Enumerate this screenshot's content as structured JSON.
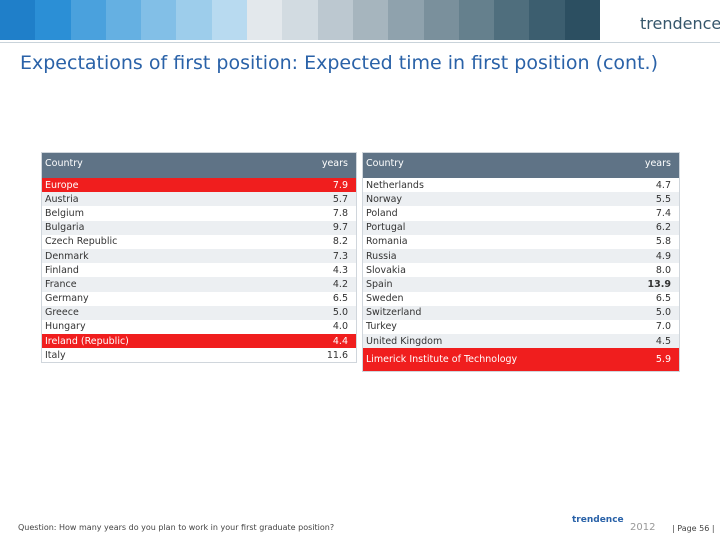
{
  "header": {
    "title": "Expectations of first position: Expected time in first position (cont.)",
    "logo": "trendence"
  },
  "tables": [
    {
      "columns": [
        "Country",
        "years"
      ],
      "rows": [
        {
          "country": "Europe",
          "years": "7.9",
          "highlight": true
        },
        {
          "country": "Austria",
          "years": "5.7"
        },
        {
          "country": "Belgium",
          "years": "7.8"
        },
        {
          "country": "Bulgaria",
          "years": "9.7"
        },
        {
          "country": "Czech Republic",
          "years": "8.2"
        },
        {
          "country": "Denmark",
          "years": "7.3"
        },
        {
          "country": "Finland",
          "years": "4.3"
        },
        {
          "country": "France",
          "years": "4.2"
        },
        {
          "country": "Germany",
          "years": "6.5"
        },
        {
          "country": "Greece",
          "years": "5.0"
        },
        {
          "country": "Hungary",
          "years": "4.0"
        },
        {
          "country": "Ireland (Republic)",
          "years": "4.4",
          "highlight": true
        },
        {
          "country": "Italy",
          "years": "11.6"
        }
      ]
    },
    {
      "columns": [
        "Country",
        "years"
      ],
      "rows": [
        {
          "country": "Netherlands",
          "years": "4.7"
        },
        {
          "country": "Norway",
          "years": "5.5"
        },
        {
          "country": "Poland",
          "years": "7.4"
        },
        {
          "country": "Portugal",
          "years": "6.2"
        },
        {
          "country": "Romania",
          "years": "5.8"
        },
        {
          "country": "Russia",
          "years": "4.9"
        },
        {
          "country": "Slovakia",
          "years": "8.0"
        },
        {
          "country": "Spain",
          "years": "13.9",
          "bold": true
        },
        {
          "country": "Sweden",
          "years": "6.5"
        },
        {
          "country": "Switzerland",
          "years": "5.0"
        },
        {
          "country": "Turkey",
          "years": "7.0"
        },
        {
          "country": "United Kingdom",
          "years": "4.5"
        },
        {
          "country": "Limerick Institute of Technology",
          "years": "5.9",
          "highlight": true,
          "tall": true
        }
      ]
    }
  ],
  "footer": {
    "question": "Question: How many years do you plan to work in your first graduate position?",
    "logo": "trendence",
    "year": "2012",
    "page": "| Page 56 |"
  }
}
